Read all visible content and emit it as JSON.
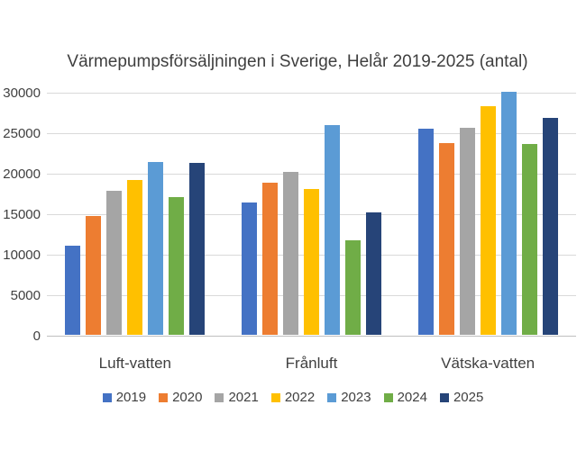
{
  "chart_data": {
    "type": "bar",
    "title": "Värmepumpsförsäljningen i Sverige, Helår 2019-2025 (antal)",
    "categories": [
      "Luft-vatten",
      "Frånluft",
      "Vätska-vatten"
    ],
    "series": [
      {
        "name": "2019",
        "color": "#4472C4",
        "values": [
          11000,
          16300,
          25400
        ]
      },
      {
        "name": "2020",
        "color": "#ED7D31",
        "values": [
          14700,
          18800,
          23700
        ]
      },
      {
        "name": "2021",
        "color": "#A5A5A5",
        "values": [
          17800,
          20100,
          25500
        ]
      },
      {
        "name": "2022",
        "color": "#FFC000",
        "values": [
          19100,
          18000,
          28200
        ]
      },
      {
        "name": "2023",
        "color": "#5B9BD5",
        "values": [
          21300,
          25900,
          30000
        ]
      },
      {
        "name": "2024",
        "color": "#70AD47",
        "values": [
          17000,
          11700,
          23500
        ]
      },
      {
        "name": "2025",
        "color": "#264478",
        "values": [
          21200,
          15100,
          26800
        ]
      }
    ],
    "ylim": [
      0,
      30000
    ],
    "yticks": [
      0,
      5000,
      10000,
      15000,
      20000,
      25000,
      30000
    ],
    "grid": true,
    "legend_position": "bottom",
    "colors": {
      "text": "#404040",
      "gridline": "#d9d9d9",
      "axis_line": "#bfbfbf",
      "background": "#ffffff"
    }
  }
}
